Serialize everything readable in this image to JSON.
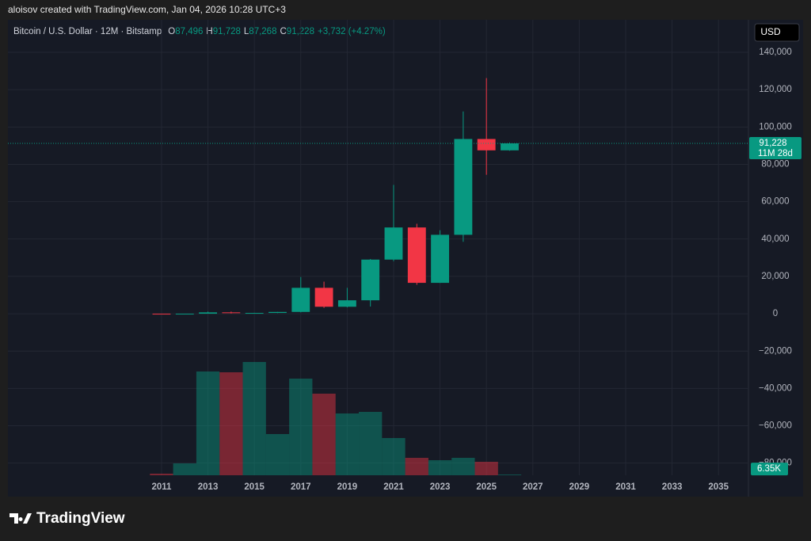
{
  "header": {
    "credit": "aloisov created with TradingView.com, Jan 04, 2026 10:28 UTC+3"
  },
  "footer": {
    "brand": "TradingView"
  },
  "chart_data": {
    "type": "candlestick",
    "symbol": "Bitcoin / U.S. Dollar · 12M · Bitstamp",
    "ohlc_legend": [
      {
        "key": "O",
        "value": "87,496"
      },
      {
        "key": "H",
        "value": "91,728"
      },
      {
        "key": "L",
        "value": "87,268"
      },
      {
        "key": "C",
        "value": "91,228"
      }
    ],
    "change": "+3,732 (+4.27%)",
    "currency": "USD",
    "x": [
      2011,
      2012,
      2013,
      2014,
      2015,
      2016,
      2017,
      2018,
      2019,
      2020,
      2021,
      2022,
      2023,
      2024,
      2025,
      2026
    ],
    "open": [
      5.3,
      4.3,
      13.5,
      732,
      318,
      430,
      966,
      13880,
      3742,
      7194,
      28990,
      46200,
      16540,
      42270,
      93580,
      87496
    ],
    "high": [
      6,
      16,
      1163,
      1165,
      495,
      979,
      19666,
      17176,
      13880,
      29300,
      69000,
      48190,
      44700,
      108300,
      126200,
      91728
    ],
    "low": [
      2.2,
      4,
      12,
      111,
      152,
      350,
      750,
      3122,
      3400,
      3850,
      28130,
      15480,
      16490,
      38500,
      74400,
      87268
    ],
    "close": [
      4.25,
      13.5,
      732,
      318,
      430,
      966,
      13880,
      3742,
      7194,
      28990,
      46200,
      16540,
      42270,
      93580,
      87500,
      91228
    ],
    "volume": [
      14000,
      105000,
      917000,
      910000,
      1001000,
      364000,
      854000,
      721000,
      546000,
      560000,
      329000,
      154000,
      133000,
      154000,
      119000,
      6350
    ],
    "volume_value_labels": [
      null,
      null,
      null,
      null,
      null,
      null,
      null,
      null,
      null,
      null,
      null,
      null,
      null,
      null,
      null,
      "6.35K"
    ],
    "volume_ylim": [
      0,
      1400000
    ],
    "up_color": "#089981",
    "down_color": "#f23645",
    "xlim": [
      2004.38,
      2036.29
    ],
    "xticks": [
      2011,
      2013,
      2015,
      2017,
      2019,
      2021,
      2023,
      2025,
      2027,
      2029,
      2031,
      2033,
      2035
    ],
    "ylim": [
      -86500,
      157400
    ],
    "yticks": [
      {
        "value": -80000,
        "label": "−80,000"
      },
      {
        "value": -60000,
        "label": "−60,000"
      },
      {
        "value": -40000,
        "label": "−40,000"
      },
      {
        "value": -20000,
        "label": "−20,000"
      },
      0,
      {
        "value": 20000,
        "label": "20,000"
      },
      {
        "value": 40000,
        "label": "40,000"
      },
      {
        "value": 60000,
        "label": "60,000"
      },
      {
        "value": 80000,
        "label": "80,000"
      },
      {
        "value": 100000,
        "label": "100,000"
      },
      {
        "value": 120000,
        "label": "120,000"
      },
      {
        "value": 140000,
        "label": "140,000"
      }
    ],
    "last_price": {
      "value": 91228,
      "label": "91,228"
    },
    "countdown": "11M 28d",
    "grid": true
  }
}
